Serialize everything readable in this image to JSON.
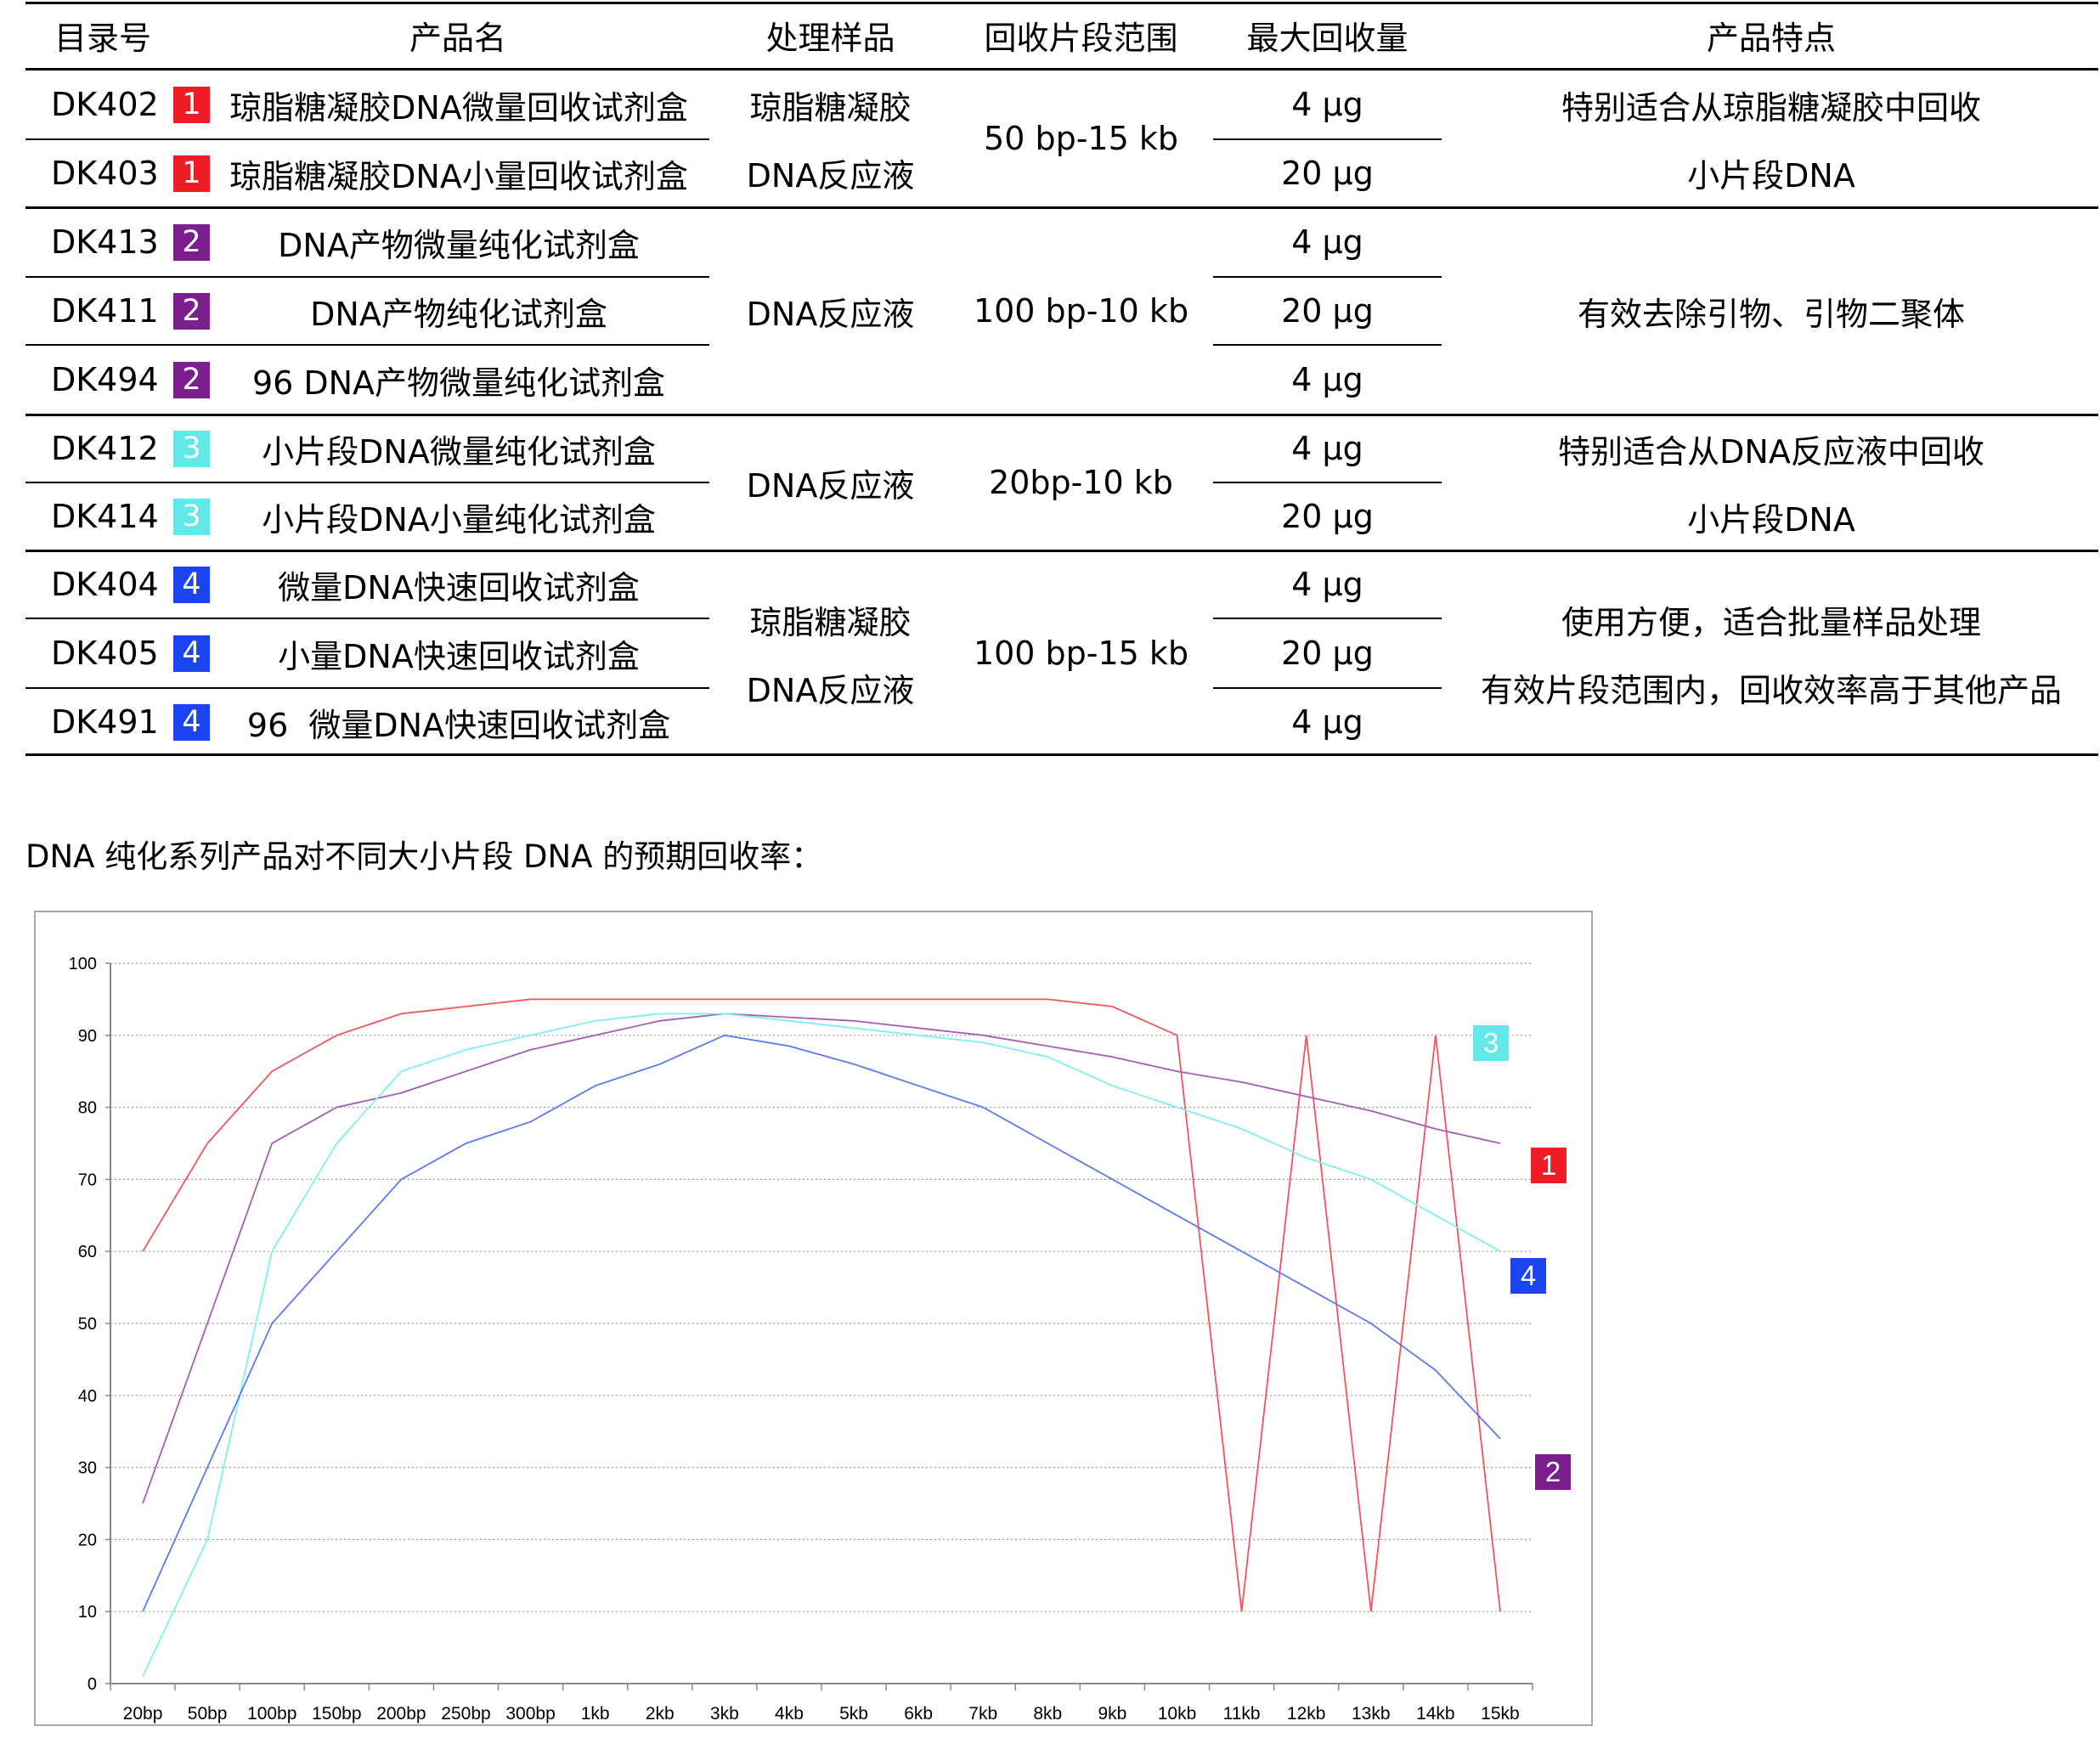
{
  "table": {
    "headers": [
      "目录号",
      "产品名",
      "处理样品",
      "回收片段范围",
      "最大回收量",
      "产品特点"
    ],
    "badge_colors": {
      "1": "#ee1c24",
      "2": "#7b1f8e",
      "3": "#62e8e8",
      "4": "#1b44f0"
    },
    "rows": [
      {
        "code": "DK402",
        "badge": "1",
        "name": "琼脂糖凝胶DNA微量回收试剂盒",
        "amount": "4 μg"
      },
      {
        "code": "DK403",
        "badge": "1",
        "name": "琼脂糖凝胶DNA小量回收试剂盒",
        "amount": "20 μg"
      },
      {
        "code": "DK413",
        "badge": "2",
        "name": "DNA产物微量纯化试剂盒",
        "amount": "4 μg"
      },
      {
        "code": "DK411",
        "badge": "2",
        "name": "DNA产物纯化试剂盒",
        "amount": "20 μg"
      },
      {
        "code": "DK494",
        "badge": "2",
        "name": "96 DNA产物微量纯化试剂盒",
        "amount": "4 μg"
      },
      {
        "code": "DK412",
        "badge": "3",
        "name": "小片段DNA微量纯化试剂盒",
        "amount": "4 μg"
      },
      {
        "code": "DK414",
        "badge": "3",
        "name": "小片段DNA小量纯化试剂盒",
        "amount": "20 μg"
      },
      {
        "code": "DK404",
        "badge": "4",
        "name": "微量DNA快速回收试剂盒",
        "amount": "4 μg"
      },
      {
        "code": "DK405",
        "badge": "4",
        "name": "小量DNA快速回收试剂盒",
        "amount": "20 μg"
      },
      {
        "code": "DK491",
        "badge": "4",
        "name": "96  微量DNA快速回收试剂盒",
        "amount": "4 μg"
      }
    ],
    "groups": [
      {
        "sample": [
          "琼脂糖凝胶",
          "DNA反应液"
        ],
        "range": "50 bp-15 kb",
        "features": [
          "特别适合从琼脂糖凝胶中回收",
          "小片段DNA"
        ]
      },
      {
        "sample": [
          "DNA反应液"
        ],
        "range": "100 bp-10 kb",
        "features": [
          "有效去除引物、引物二聚体"
        ]
      },
      {
        "sample": [
          "DNA反应液"
        ],
        "range": "20bp-10 kb",
        "features": [
          "特别适合从DNA反应液中回收",
          "小片段DNA"
        ]
      },
      {
        "sample": [
          "琼脂糖凝胶",
          "DNA反应液"
        ],
        "range": "100 bp-15 kb",
        "features": [
          "使用方便，适合批量样品处理",
          "有效片段范围内，回收效率高于其他产品"
        ]
      }
    ]
  },
  "chart_intro": "DNA 纯化系列产品对不同大小片段 DNA 的预期回收率：",
  "chart_data": {
    "type": "line",
    "categories": [
      "20bp",
      "50bp",
      "100bp",
      "150bp",
      "200bp",
      "250bp",
      "300bp",
      "1kb",
      "2kb",
      "3kb",
      "4kb",
      "5kb",
      "6kb",
      "7kb",
      "8kb",
      "9kb",
      "10kb",
      "11kb",
      "12kb",
      "13kb",
      "14kb",
      "15kb"
    ],
    "ylim": [
      0,
      100
    ],
    "yticks": [
      0,
      10,
      20,
      30,
      40,
      50,
      60,
      70,
      80,
      90,
      100
    ],
    "grid": true,
    "series": [
      {
        "name": "1",
        "color": "#f2545b",
        "values": [
          60,
          75,
          85,
          90,
          93,
          94,
          95,
          95,
          95,
          95,
          95,
          95,
          95,
          95,
          95,
          94,
          90,
          10,
          90,
          10,
          90,
          10
        ]
      },
      {
        "name": "2",
        "color": "#a05fb0",
        "values": [
          25,
          50,
          75,
          80,
          82,
          85,
          88,
          90,
          92,
          93,
          92.5,
          92,
          91,
          90,
          88.5,
          87,
          85,
          83.5,
          81.5,
          79.5,
          77,
          75
        ]
      },
      {
        "name": "3",
        "color": "#7ff0ee",
        "values": [
          1,
          20,
          60,
          75,
          85,
          88,
          90,
          92,
          93,
          93,
          92,
          91,
          90,
          89,
          87,
          83,
          80,
          77,
          73,
          70,
          65,
          60
        ]
      },
      {
        "name": "4",
        "color": "#5d79f0",
        "values": [
          10,
          30,
          50,
          60,
          70,
          75,
          78,
          83,
          86,
          90,
          88.5,
          86,
          83,
          80,
          75,
          70,
          65,
          60,
          55,
          50,
          43.5,
          34
        ]
      }
    ],
    "legend": [
      {
        "label": "1",
        "color": "#ee1c24"
      },
      {
        "label": "2",
        "color": "#7b1f8e"
      },
      {
        "label": "3",
        "color": "#62e8e8"
      },
      {
        "label": "4",
        "color": "#1b44f0"
      }
    ]
  }
}
